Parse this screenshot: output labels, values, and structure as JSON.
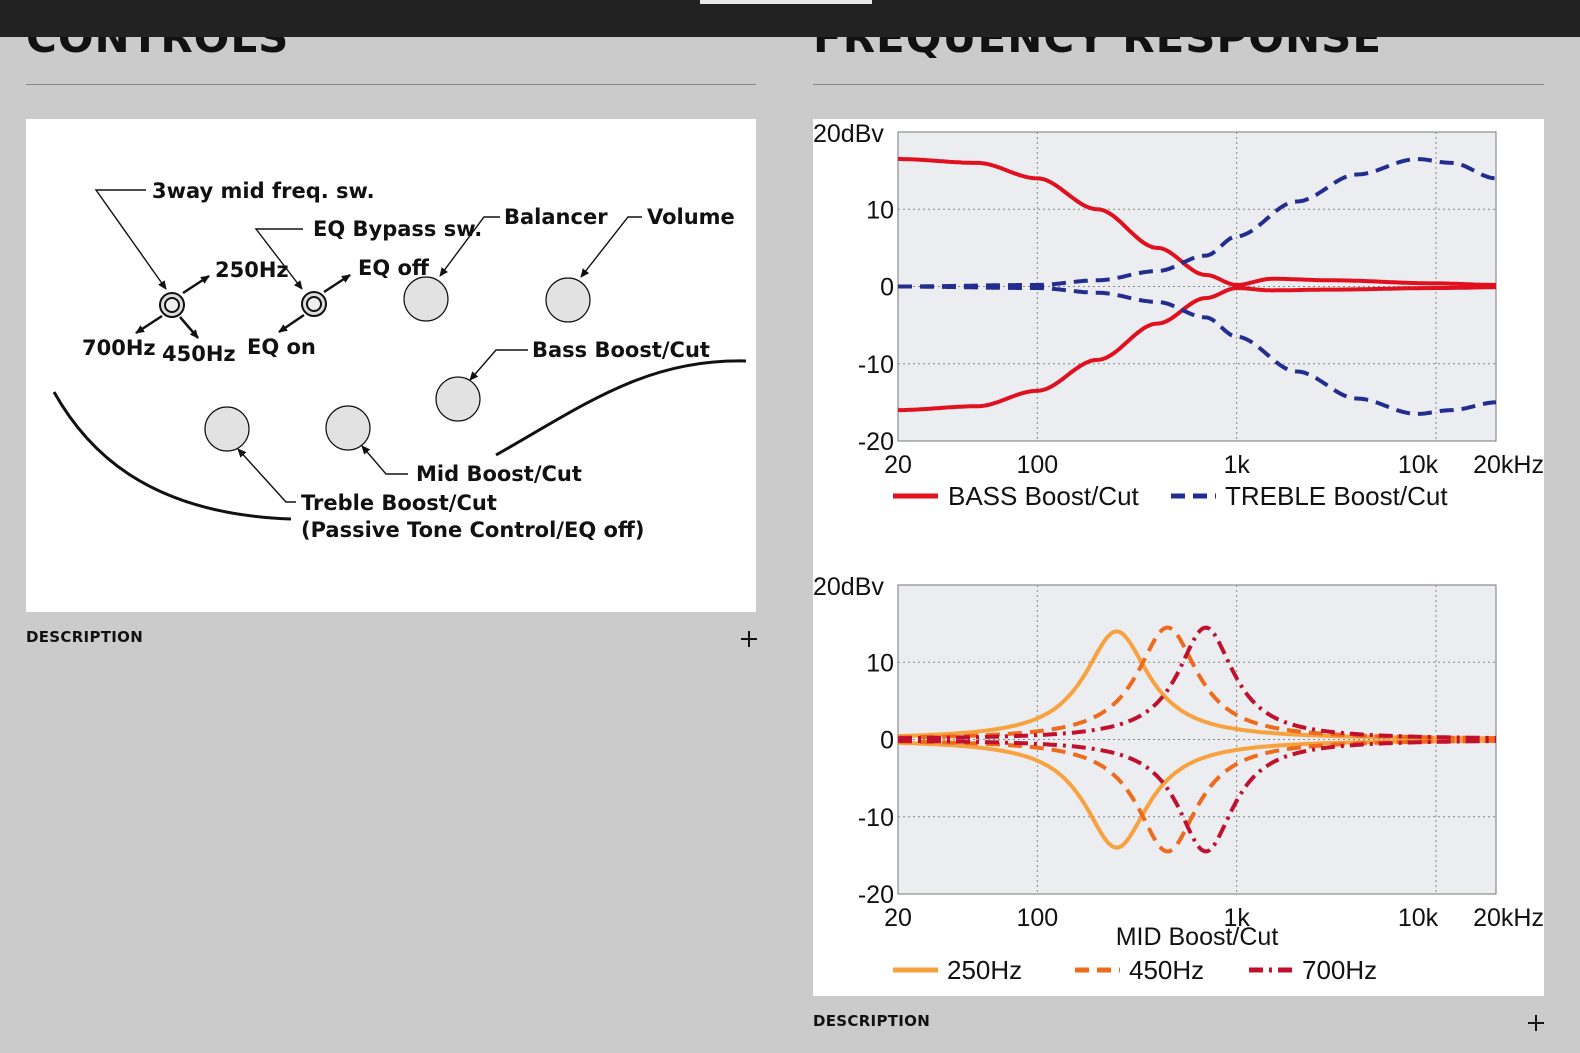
{
  "controls_section": {
    "title": "CONTROLS",
    "description_label": "DESCRIPTION",
    "diagram_labels": {
      "mid_freq_switch": "3way mid freq. sw.",
      "hz_250": "250Hz",
      "hz_700": "700Hz",
      "hz_450": "450Hz",
      "eq_bypass_switch": "EQ Bypass sw.",
      "eq_off": "EQ off",
      "eq_on": "EQ on",
      "balancer": "Balancer",
      "volume": "Volume",
      "bass": "Bass Boost/Cut",
      "mid": "Mid Boost/Cut",
      "treble": "Treble Boost/Cut",
      "treble_note": "(Passive Tone Control/EQ off)"
    }
  },
  "frequency_section": {
    "title": "FREQUENCY RESPONSE",
    "description_label": "DESCRIPTION"
  },
  "colors": {
    "bass": "#e0101e",
    "treble": "#232d8f",
    "mid_250": "#f7a23e",
    "mid_450": "#ee6a1c",
    "mid_700": "#c0102e"
  },
  "chart_data": [
    {
      "type": "line",
      "title": "",
      "ylabel": "",
      "xlabel": "",
      "x_scale": "log",
      "xlim": [
        20,
        20000
      ],
      "ylim": [
        -20,
        20
      ],
      "x_tick_labels": [
        "20",
        "100",
        "1k",
        "10k",
        "20kHz"
      ],
      "y_tick_labels": [
        "20dBv",
        "10",
        "0",
        "-10",
        "-20"
      ],
      "grid": true,
      "legend": "bottom",
      "series": [
        {
          "name": "BASS Boost/Cut",
          "style": "solid",
          "color": "#e0101e",
          "boost": {
            "x": [
              20,
              50,
              100,
              200,
              400,
              700,
              1000,
              1500,
              3000,
              10000,
              20000
            ],
            "y": [
              16.5,
              16,
              14,
              10,
              5,
              1.5,
              0.2,
              1,
              0.8,
              0.4,
              0.2
            ]
          },
          "cut": {
            "x": [
              20,
              50,
              100,
              200,
              400,
              700,
              1000,
              1500,
              3000,
              10000,
              20000
            ],
            "y": [
              -16,
              -15.5,
              -13.5,
              -9.5,
              -4.8,
              -1.5,
              -0.2,
              -0.5,
              -0.4,
              -0.2,
              -0.1
            ]
          }
        },
        {
          "name": "TREBLE Boost/Cut",
          "style": "dashed",
          "color": "#232d8f",
          "boost": {
            "x": [
              20,
              100,
              200,
              400,
              700,
              1000,
              2000,
              4000,
              8000,
              12000,
              20000
            ],
            "y": [
              0,
              0.2,
              0.8,
              2,
              4,
              6.5,
              11,
              14.5,
              16.5,
              16,
              14
            ]
          },
          "cut": {
            "x": [
              20,
              100,
              200,
              400,
              700,
              1000,
              2000,
              4000,
              8000,
              12000,
              20000
            ],
            "y": [
              0,
              -0.2,
              -0.8,
              -2,
              -4,
              -6.5,
              -11,
              -14.5,
              -16.5,
              -16,
              -15
            ]
          }
        }
      ]
    },
    {
      "type": "line",
      "title": "",
      "xlabel": "MID Boost/Cut",
      "ylabel": "",
      "x_scale": "log",
      "xlim": [
        20,
        20000
      ],
      "ylim": [
        -20,
        20
      ],
      "x_tick_labels": [
        "20",
        "100",
        "1k",
        "10k",
        "20kHz"
      ],
      "y_tick_labels": [
        "20dBv",
        "10",
        "0",
        "-10",
        "-20"
      ],
      "grid": true,
      "legend": "bottom",
      "series": [
        {
          "name": "250Hz",
          "style": "solid",
          "color": "#f7a23e",
          "center_hz": 250,
          "peak_db": 14,
          "width_oct": 1.5
        },
        {
          "name": "450Hz",
          "style": "dashed",
          "color": "#ee6a1c",
          "center_hz": 450,
          "peak_db": 14.5,
          "width_oct": 1.4
        },
        {
          "name": "700Hz",
          "style": "dashdot",
          "color": "#c0102e",
          "center_hz": 700,
          "peak_db": 14.5,
          "width_oct": 1.3
        }
      ]
    }
  ]
}
